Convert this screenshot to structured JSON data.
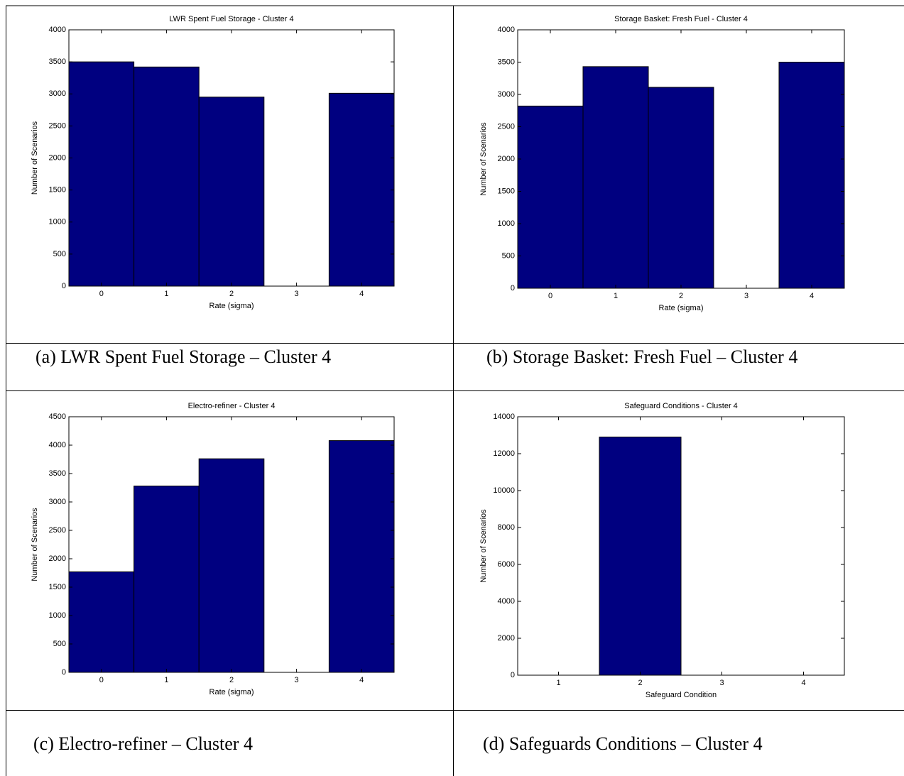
{
  "chart_data": [
    {
      "type": "bar",
      "title": "LWR Spent Fuel Storage - Cluster 4",
      "xlabel": "Rate (sigma)",
      "ylabel": "Number of Scenarios",
      "categories": [
        "0",
        "1",
        "2",
        "3",
        "4"
      ],
      "values": [
        3500,
        3420,
        2950,
        0,
        3010
      ],
      "color": "#000080",
      "ylim": [
        0,
        4000
      ],
      "yticks": [
        0,
        500,
        1000,
        1500,
        2000,
        2500,
        3000,
        3500,
        4000
      ],
      "caption": "(a)  LWR Spent Fuel Storage – Cluster 4"
    },
    {
      "type": "bar",
      "title": "Storage Basket: Fresh Fuel - Cluster 4",
      "xlabel": "Rate (sigma)",
      "ylabel": "Number of Scenarios",
      "categories": [
        "0",
        "1",
        "2",
        "3",
        "4"
      ],
      "values": [
        2820,
        3430,
        3110,
        0,
        3500
      ],
      "color": "#000080",
      "ylim": [
        0,
        4000
      ],
      "yticks": [
        0,
        500,
        1000,
        1500,
        2000,
        2500,
        3000,
        3500,
        4000
      ],
      "caption": "(b)  Storage Basket: Fresh Fuel – Cluster 4"
    },
    {
      "type": "bar",
      "title": "Electro-refiner - Cluster 4",
      "xlabel": "Rate (sigma)",
      "ylabel": "Number of Scenarios",
      "categories": [
        "0",
        "1",
        "2",
        "3",
        "4"
      ],
      "values": [
        1770,
        3280,
        3760,
        0,
        4080
      ],
      "color": "#000080",
      "ylim": [
        0,
        4500
      ],
      "yticks": [
        0,
        500,
        1000,
        1500,
        2000,
        2500,
        3000,
        3500,
        4000,
        4500
      ],
      "caption": "(c)  Electro-refiner – Cluster 4"
    },
    {
      "type": "bar",
      "title": "Safeguard Conditions - Cluster 4",
      "xlabel": "Safeguard Condition",
      "ylabel": "Number of Scenarios",
      "categories": [
        "1",
        "2",
        "3",
        "4"
      ],
      "values": [
        0,
        12900,
        0,
        0
      ],
      "color": "#000080",
      "ylim": [
        0,
        14000
      ],
      "yticks": [
        0,
        2000,
        4000,
        6000,
        8000,
        10000,
        12000,
        14000
      ],
      "caption": "(d)  Safeguards Conditions – Cluster 4"
    }
  ]
}
